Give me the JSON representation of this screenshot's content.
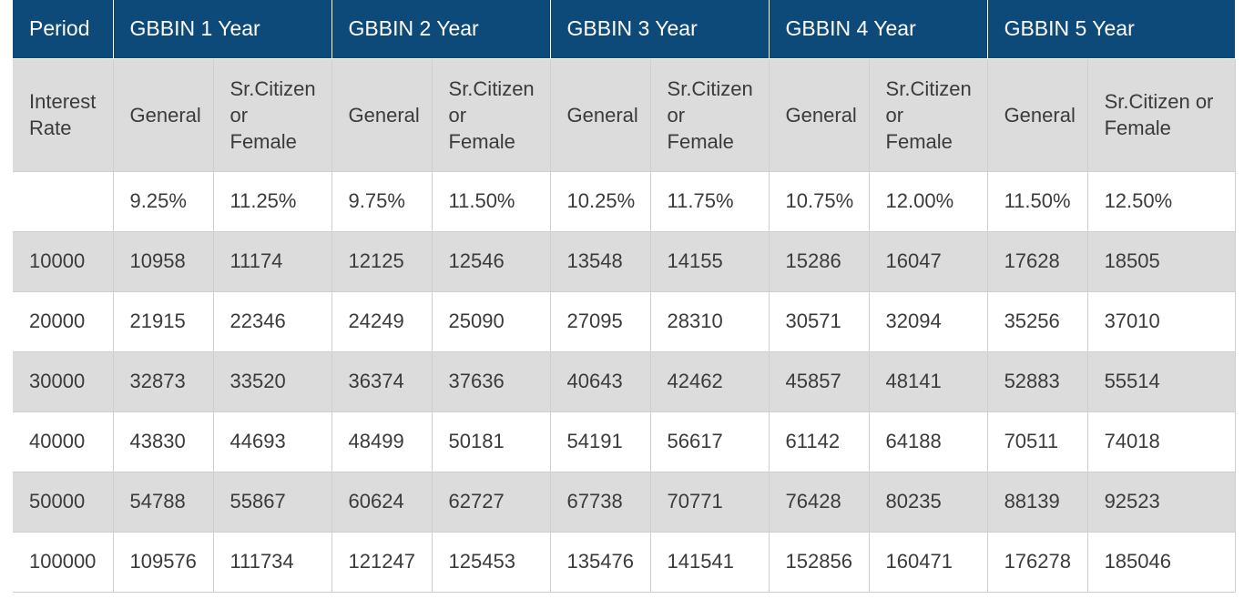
{
  "header": {
    "period": "Period",
    "groups": [
      "GBBIN 1 Year",
      "GBBIN 2 Year",
      "GBBIN 3 Year",
      "GBBIN 4 Year",
      "GBBIN 5 Year"
    ]
  },
  "subheader": {
    "interest_rate": "Interest\nRate",
    "general": "General",
    "senior": "Sr.Citizen\nor\nFemale",
    "senior_last": "Sr.Citizen or\nFemale"
  },
  "rates": [
    "",
    "9.25%",
    "11.25%",
    "9.75%",
    "11.50%",
    "10.25%",
    "11.75%",
    "10.75%",
    "12.00%",
    "11.50%",
    "12.50%"
  ],
  "rows": [
    [
      "10000",
      "10958",
      "11174",
      "12125",
      "12546",
      "13548",
      "14155",
      "15286",
      "16047",
      "17628",
      "18505"
    ],
    [
      "20000",
      "21915",
      "22346",
      "24249",
      "25090",
      "27095",
      "28310",
      "30571",
      "32094",
      "35256",
      "37010"
    ],
    [
      "30000",
      "32873",
      "33520",
      "36374",
      "37636",
      "40643",
      "42462",
      "45857",
      "48141",
      "52883",
      "55514"
    ],
    [
      "40000",
      "43830",
      "44693",
      "48499",
      "50181",
      "54191",
      "56617",
      "61142",
      "64188",
      "70511",
      "74018"
    ],
    [
      "50000",
      "54788",
      "55867",
      "60624",
      "62727",
      "67738",
      "70771",
      "76428",
      "80235",
      "88139",
      "92523"
    ],
    [
      "100000",
      "109576",
      "111734",
      "121247",
      "125453",
      "135476",
      "141541",
      "152856",
      "160471",
      "176278",
      "185046"
    ]
  ]
}
